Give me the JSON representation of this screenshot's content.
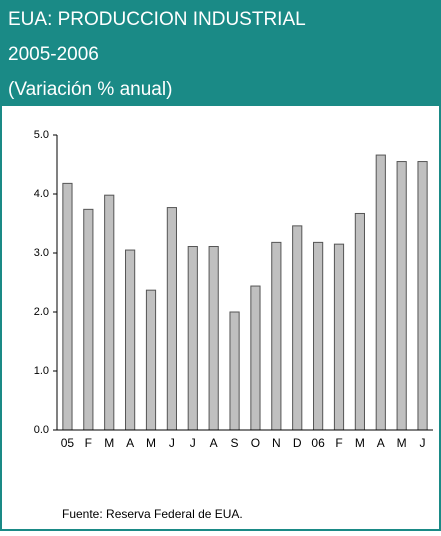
{
  "chart_data": {
    "type": "bar",
    "title_lines": [
      "EUA: PRODUCCION INDUSTRIAL",
      "2005-2006",
      "(Variación % anual)"
    ],
    "source": "Fuente:  Reserva Federal de EUA.",
    "categories": [
      "05",
      "F",
      "M",
      "A",
      "M",
      "J",
      "J",
      "A",
      "S",
      "O",
      "N",
      "D",
      "06",
      "F",
      "M",
      "A",
      "M",
      "J"
    ],
    "values": [
      4.18,
      3.74,
      3.98,
      3.05,
      2.37,
      3.77,
      3.11,
      3.11,
      2.0,
      2.44,
      3.18,
      3.46,
      3.18,
      3.15,
      3.67,
      4.66,
      4.55,
      4.55
    ],
    "color": "#c0c0c0",
    "ylim": [
      0,
      5
    ],
    "yticks": [
      {
        "value": 0,
        "label": "0.0"
      },
      {
        "value": 1,
        "label": "1.0"
      },
      {
        "value": 2,
        "label": "2.0"
      },
      {
        "value": 3,
        "label": "3.0"
      },
      {
        "value": 4,
        "label": "4.0"
      },
      {
        "value": 5,
        "label": "5.0"
      }
    ],
    "grid": false
  }
}
